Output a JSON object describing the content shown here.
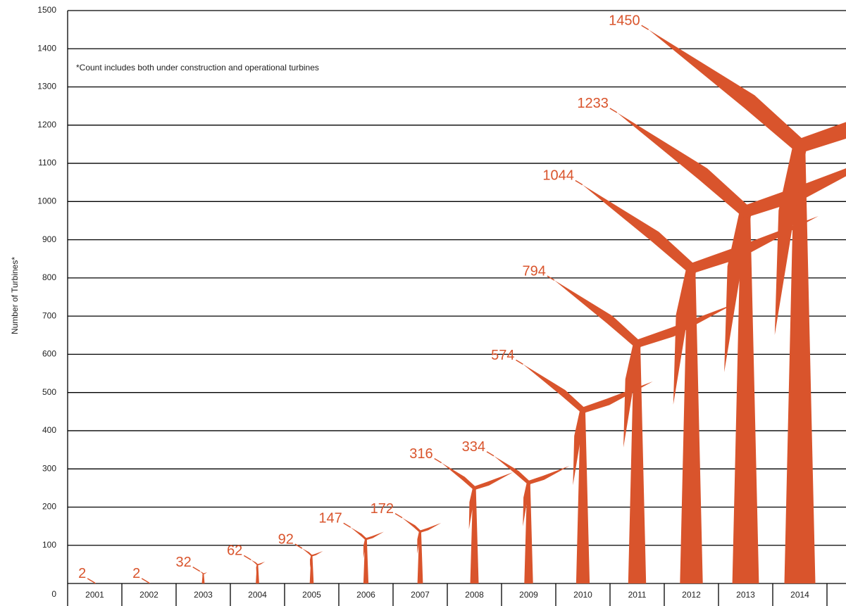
{
  "chart_data": {
    "type": "pictograph",
    "y_label": "Number of Turbines*",
    "annotation": "*Count includes both under construction and operational turbines",
    "categories": [
      "2001",
      "2002",
      "2003",
      "2004",
      "2005",
      "2006",
      "2007",
      "2008",
      "2009",
      "2010",
      "2011",
      "2012",
      "2013",
      "2014"
    ],
    "values": [
      2,
      2,
      32,
      62,
      92,
      147,
      172,
      316,
      334,
      574,
      794,
      1044,
      1233,
      1450
    ],
    "color": "#d9542c",
    "ylim": [
      0,
      1500
    ],
    "yticks": [
      0,
      100,
      200,
      300,
      400,
      500,
      600,
      700,
      800,
      900,
      1000,
      1100,
      1200,
      1300,
      1400,
      1500
    ],
    "grid": true
  }
}
